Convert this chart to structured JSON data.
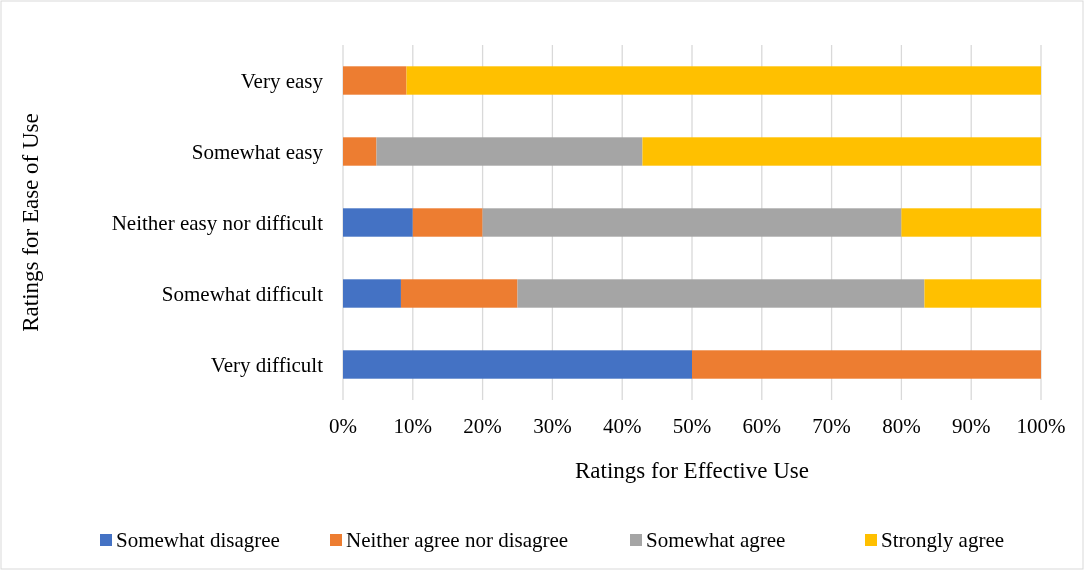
{
  "chart_data": {
    "type": "bar",
    "orientation": "horizontal",
    "stacked": true,
    "xlabel": "Ratings for Effective Use",
    "ylabel": "Ratings for Ease of Use",
    "categories": [
      "Very easy",
      "Somewhat easy",
      "Neither easy nor difficult",
      "Somewhat difficult",
      "Very difficult"
    ],
    "series": [
      {
        "name": "Somewhat disagree",
        "color": "#4472c4",
        "values": [
          0,
          0,
          10,
          8.3,
          50
        ]
      },
      {
        "name": "Neither agree nor disagree",
        "color": "#ed7d31",
        "values": [
          9.1,
          4.8,
          10,
          16.7,
          50
        ]
      },
      {
        "name": "Somewhat agree",
        "color": "#a5a5a5",
        "values": [
          0,
          38.1,
          60,
          58.3,
          0
        ]
      },
      {
        "name": "Strongly agree",
        "color": "#ffc000",
        "values": [
          90.9,
          57.1,
          20,
          16.7,
          0
        ]
      }
    ],
    "xlim": [
      0,
      100
    ],
    "xticks": [
      {
        "value": 0,
        "label": "0%"
      },
      {
        "value": 10,
        "label": "10%"
      },
      {
        "value": 20,
        "label": "20%"
      },
      {
        "value": 30,
        "label": "30%"
      },
      {
        "value": 40,
        "label": "40%"
      },
      {
        "value": 50,
        "label": "50%"
      },
      {
        "value": 60,
        "label": "60%"
      },
      {
        "value": 70,
        "label": "70%"
      },
      {
        "value": 80,
        "label": "80%"
      },
      {
        "value": 90,
        "label": "90%"
      },
      {
        "value": 100,
        "label": "100%"
      }
    ],
    "grid": "x",
    "legend": "bottom"
  }
}
